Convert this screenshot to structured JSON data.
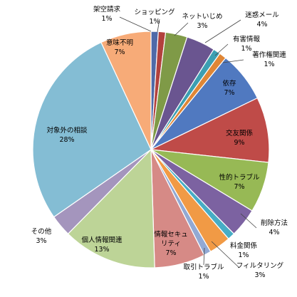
{
  "chart_data": {
    "type": "pie",
    "title": "",
    "start_angle_deg": 0,
    "direction": "clockwise",
    "slices": [
      {
        "name": "架空請求",
        "label": "1%",
        "value": 1,
        "color": "#4f6aa8"
      },
      {
        "name": "ショッピング",
        "label": "1%",
        "value": 1,
        "color": "#b2413d"
      },
      {
        "name": "ネットいじめ",
        "label": "3%",
        "value": 3,
        "color": "#7f9a47"
      },
      {
        "name": "迷惑メール",
        "label": "4%",
        "value": 4,
        "color": "#6a5590"
      },
      {
        "name": "有害情報",
        "label": "1%",
        "value": 1,
        "color": "#3c9fb2"
      },
      {
        "name": "著作権関連",
        "label": "1%",
        "value": 1,
        "color": "#df8636"
      },
      {
        "name": "依存",
        "label": "7%",
        "value": 7,
        "color": "#5079c0"
      },
      {
        "name": "交友関係",
        "label": "9%",
        "value": 9,
        "color": "#bf4b48"
      },
      {
        "name": "性的トラブル",
        "label": "7%",
        "value": 7,
        "color": "#97b955"
      },
      {
        "name": "削除方法",
        "label": "4%",
        "value": 4,
        "color": "#7c62a1"
      },
      {
        "name": "料金関係",
        "label": "1%",
        "value": 1,
        "color": "#47adc5"
      },
      {
        "name": "フィルタリング",
        "label": "3%",
        "value": 3,
        "color": "#f19a45"
      },
      {
        "name": "取引トラブル",
        "label": "1%",
        "value": 1,
        "color": "#92a9d4"
      },
      {
        "name": "情報セキュリティ",
        "label": "7%",
        "value": 7,
        "color": "#d68a86"
      },
      {
        "name": "個人情報関連",
        "label": "13%",
        "value": 13,
        "color": "#bdd497"
      },
      {
        "name": "その他",
        "label": "3%",
        "value": 3,
        "color": "#a495bd"
      },
      {
        "name": "対象外の相談",
        "label": "28%",
        "value": 28,
        "color": "#84bdd4"
      },
      {
        "name": "意味不明",
        "label": "7%",
        "value": 7,
        "color": "#f7ab78"
      }
    ]
  }
}
